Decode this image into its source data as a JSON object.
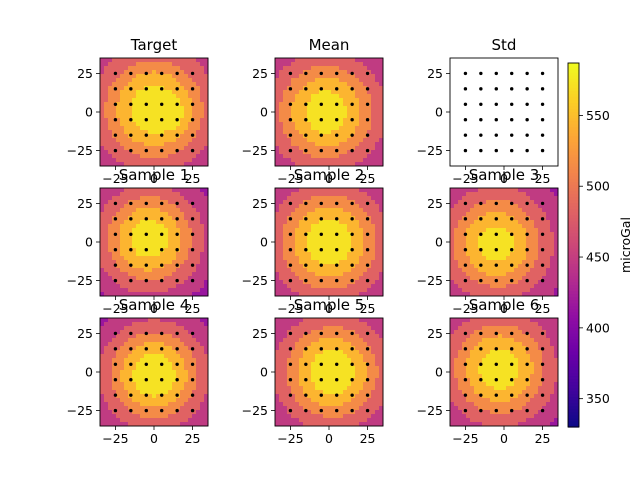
{
  "chart_data": {
    "type": "heatmap",
    "colormap": "plasma",
    "colorbar": {
      "label": "microGal",
      "range": [
        330,
        587
      ],
      "ticks": [
        350,
        400,
        450,
        500,
        550
      ],
      "tick_labels": [
        "350",
        "400",
        "450",
        "500",
        "550"
      ]
    },
    "axes": {
      "xlim": [
        -35,
        35
      ],
      "ylim": [
        -35,
        35
      ],
      "xticks": [
        -25,
        0,
        25
      ],
      "xtick_labels": [
        "−25",
        "0",
        "25"
      ],
      "yticks": [
        25,
        0,
        -25
      ],
      "ytick_labels": [
        "25",
        "0",
        "−25"
      ]
    },
    "station_grid": {
      "x": [
        -25,
        -15,
        -5,
        5,
        15,
        25
      ],
      "y": [
        -25,
        -15,
        -5,
        5,
        15,
        25
      ]
    },
    "panels": [
      {
        "title": "Target",
        "peak": 585,
        "center": [
          0,
          2
        ],
        "spread": 29,
        "background": 395,
        "bump": [
          12,
          -2,
          30
        ]
      },
      {
        "title": "Mean",
        "peak": 580,
        "center": [
          -2,
          0
        ],
        "spread": 28,
        "background": 395,
        "bump": null
      },
      {
        "title": "Std",
        "peak": null,
        "center": null,
        "spread": null,
        "background": null,
        "bump": null
      },
      {
        "title": "Sample 1",
        "peak": 580,
        "center": [
          -3,
          2
        ],
        "spread": 26,
        "background": 390,
        "bump": null
      },
      {
        "title": "Sample 2",
        "peak": 585,
        "center": [
          0,
          0
        ],
        "spread": 28,
        "background": 395,
        "bump": null
      },
      {
        "title": "Sample 3",
        "peak": 575,
        "center": [
          -5,
          -1
        ],
        "spread": 27,
        "background": 395,
        "bump": null
      },
      {
        "title": "Sample 4",
        "peak": 585,
        "center": [
          0,
          -2
        ],
        "spread": 26,
        "background": 390,
        "bump": null
      },
      {
        "title": "Sample 5",
        "peak": 585,
        "center": [
          2,
          0
        ],
        "spread": 27,
        "background": 395,
        "bump": null
      },
      {
        "title": "Sample 6",
        "peak": 580,
        "center": [
          -3,
          2
        ],
        "spread": 27,
        "background": 395,
        "bump": null
      }
    ],
    "levels": [
      330,
      365,
      400,
      430,
      465,
      500,
      530,
      560,
      587
    ]
  }
}
